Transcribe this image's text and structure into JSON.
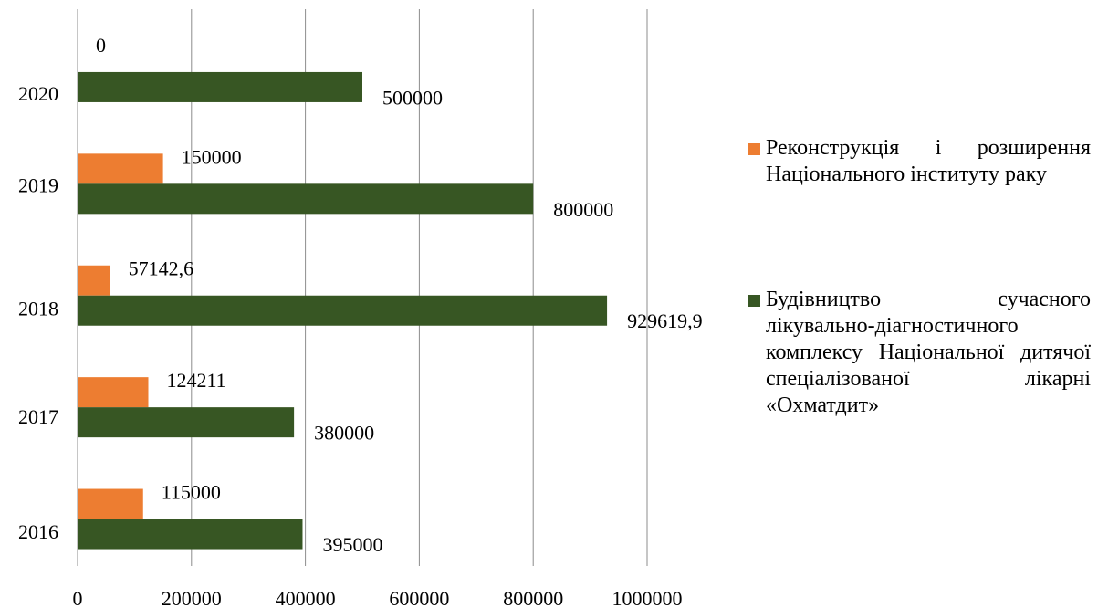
{
  "chart_data": {
    "type": "bar",
    "orientation": "horizontal",
    "categories": [
      "2016",
      "2017",
      "2018",
      "2019",
      "2020"
    ],
    "series": [
      {
        "name": "Реконструкція і розширення Національного інституту раку",
        "color": "#ed7d31",
        "values": [
          115000,
          124211,
          57142.6,
          150000,
          0
        ],
        "labels": [
          "115000",
          "124211",
          "57142,6",
          "150000",
          "0"
        ]
      },
      {
        "name": "Будівництво сучасного лікувально-діагностичного комплексу Національної дитячої спеціалізованої лікарні «Охматдит»",
        "color": "#375623",
        "values": [
          395000,
          380000,
          929619.9,
          800000,
          500000
        ],
        "labels": [
          "395000",
          "380000",
          "929619,9",
          "800000",
          "500000"
        ]
      }
    ],
    "xlim": [
      0,
      1000000
    ],
    "xticks": [
      "0",
      "200000",
      "400000",
      "600000",
      "800000",
      "1000000"
    ],
    "grid": true,
    "legend_position": "right"
  }
}
